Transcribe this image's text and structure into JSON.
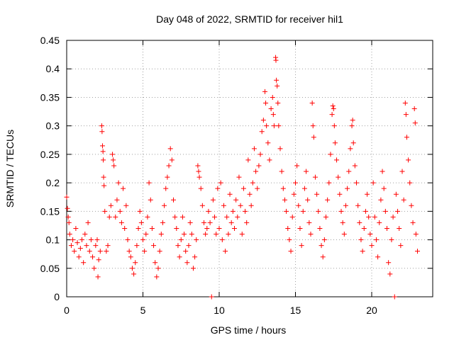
{
  "chart_data": {
    "type": "scatter",
    "title": "Day 048 of 2022, SRMTID for receiver hil1",
    "xlabel": "GPS time / hours",
    "ylabel": "SRMTID / TECUs",
    "xlim": [
      0,
      24
    ],
    "ylim": [
      0,
      0.45
    ],
    "x_ticks": [
      0,
      5,
      10,
      15,
      20
    ],
    "x_tick_labels": [
      "0",
      "5",
      "10",
      "15",
      "20"
    ],
    "y_ticks": [
      0,
      0.05,
      0.1,
      0.15,
      0.2,
      0.25,
      0.3,
      0.35,
      0.4,
      0.45
    ],
    "y_tick_labels": [
      "0",
      "0.05",
      "0.1",
      "0.15",
      "0.2",
      "0.25",
      "0.3",
      "0.35",
      "0.4",
      "0.45"
    ],
    "grid": true,
    "marker": "+",
    "color": "#ff0000",
    "series": [
      {
        "name": "SRMTID",
        "points": [
          [
            0.0,
            0.175
          ],
          [
            0.05,
            0.155
          ],
          [
            0.1,
            0.14
          ],
          [
            0.15,
            0.13
          ],
          [
            0.2,
            0.11
          ],
          [
            0.3,
            0.09
          ],
          [
            0.4,
            0.1
          ],
          [
            0.5,
            0.08
          ],
          [
            0.6,
            0.12
          ],
          [
            0.7,
            0.095
          ],
          [
            0.8,
            0.07
          ],
          [
            0.9,
            0.085
          ],
          [
            1.0,
            0.1
          ],
          [
            1.1,
            0.06
          ],
          [
            1.2,
            0.11
          ],
          [
            1.3,
            0.09
          ],
          [
            1.4,
            0.13
          ],
          [
            1.5,
            0.08
          ],
          [
            1.6,
            0.1
          ],
          [
            1.7,
            0.07
          ],
          [
            1.8,
            0.05
          ],
          [
            1.9,
            0.09
          ],
          [
            2.0,
            0.1
          ],
          [
            2.05,
            0.035
          ],
          [
            2.1,
            0.065
          ],
          [
            2.2,
            0.08
          ],
          [
            2.3,
            0.3
          ],
          [
            2.32,
            0.29
          ],
          [
            2.35,
            0.265
          ],
          [
            2.38,
            0.255
          ],
          [
            2.4,
            0.24
          ],
          [
            2.42,
            0.21
          ],
          [
            2.45,
            0.195
          ],
          [
            2.5,
            0.15
          ],
          [
            2.6,
            0.08
          ],
          [
            2.7,
            0.09
          ],
          [
            2.8,
            0.14
          ],
          [
            2.9,
            0.16
          ],
          [
            3.0,
            0.25
          ],
          [
            3.05,
            0.24
          ],
          [
            3.1,
            0.23
          ],
          [
            3.2,
            0.14
          ],
          [
            3.3,
            0.17
          ],
          [
            3.4,
            0.2
          ],
          [
            3.5,
            0.15
          ],
          [
            3.6,
            0.13
          ],
          [
            3.7,
            0.19
          ],
          [
            3.8,
            0.12
          ],
          [
            3.9,
            0.16
          ],
          [
            4.0,
            0.1
          ],
          [
            4.1,
            0.08
          ],
          [
            4.2,
            0.07
          ],
          [
            4.3,
            0.05
          ],
          [
            4.4,
            0.04
          ],
          [
            4.5,
            0.06
          ],
          [
            4.6,
            0.09
          ],
          [
            4.7,
            0.12
          ],
          [
            4.8,
            0.15
          ],
          [
            4.9,
            0.13
          ],
          [
            5.0,
            0.1
          ],
          [
            5.1,
            0.08
          ],
          [
            5.2,
            0.11
          ],
          [
            5.3,
            0.14
          ],
          [
            5.4,
            0.2
          ],
          [
            5.5,
            0.17
          ],
          [
            5.6,
            0.12
          ],
          [
            5.7,
            0.09
          ],
          [
            5.8,
            0.06
          ],
          [
            5.9,
            0.035
          ],
          [
            6.0,
            0.05
          ],
          [
            6.1,
            0.08
          ],
          [
            6.2,
            0.11
          ],
          [
            6.3,
            0.13
          ],
          [
            6.4,
            0.16
          ],
          [
            6.5,
            0.19
          ],
          [
            6.6,
            0.21
          ],
          [
            6.7,
            0.23
          ],
          [
            6.8,
            0.26
          ],
          [
            6.9,
            0.24
          ],
          [
            7.0,
            0.17
          ],
          [
            7.1,
            0.14
          ],
          [
            7.2,
            0.12
          ],
          [
            7.3,
            0.09
          ],
          [
            7.4,
            0.07
          ],
          [
            7.5,
            0.1
          ],
          [
            7.6,
            0.14
          ],
          [
            7.7,
            0.11
          ],
          [
            7.8,
            0.08
          ],
          [
            7.9,
            0.06
          ],
          [
            8.0,
            0.09
          ],
          [
            8.1,
            0.13
          ],
          [
            8.2,
            0.11
          ],
          [
            8.3,
            0.05
          ],
          [
            8.4,
            0.07
          ],
          [
            8.5,
            0.1
          ],
          [
            8.6,
            0.23
          ],
          [
            8.65,
            0.22
          ],
          [
            8.7,
            0.21
          ],
          [
            8.8,
            0.19
          ],
          [
            8.9,
            0.16
          ],
          [
            9.0,
            0.13
          ],
          [
            9.1,
            0.11
          ],
          [
            9.2,
            0.12
          ],
          [
            9.3,
            0.15
          ],
          [
            9.4,
            0.13
          ],
          [
            9.5,
            0.0
          ],
          [
            9.6,
            0.17
          ],
          [
            9.7,
            0.14
          ],
          [
            9.8,
            0.11
          ],
          [
            9.9,
            0.19
          ],
          [
            10.0,
            0.12
          ],
          [
            10.1,
            0.2
          ],
          [
            10.2,
            0.1
          ],
          [
            10.3,
            0.16
          ],
          [
            10.4,
            0.08
          ],
          [
            10.5,
            0.14
          ],
          [
            10.6,
            0.11
          ],
          [
            10.7,
            0.18
          ],
          [
            10.8,
            0.13
          ],
          [
            10.9,
            0.15
          ],
          [
            11.0,
            0.12
          ],
          [
            11.1,
            0.17
          ],
          [
            11.2,
            0.14
          ],
          [
            11.3,
            0.21
          ],
          [
            11.4,
            0.16
          ],
          [
            11.5,
            0.11
          ],
          [
            11.6,
            0.19
          ],
          [
            11.7,
            0.15
          ],
          [
            11.8,
            0.13
          ],
          [
            11.9,
            0.24
          ],
          [
            12.0,
            0.18
          ],
          [
            12.1,
            0.16
          ],
          [
            12.2,
            0.2
          ],
          [
            12.3,
            0.26
          ],
          [
            12.4,
            0.22
          ],
          [
            12.5,
            0.19
          ],
          [
            12.6,
            0.23
          ],
          [
            12.7,
            0.25
          ],
          [
            12.8,
            0.29
          ],
          [
            12.9,
            0.31
          ],
          [
            13.0,
            0.36
          ],
          [
            13.05,
            0.34
          ],
          [
            13.1,
            0.3
          ],
          [
            13.2,
            0.27
          ],
          [
            13.3,
            0.24
          ],
          [
            13.4,
            0.33
          ],
          [
            13.5,
            0.35
          ],
          [
            13.55,
            0.32
          ],
          [
            13.6,
            0.3
          ],
          [
            13.7,
            0.42
          ],
          [
            13.72,
            0.415
          ],
          [
            13.75,
            0.38
          ],
          [
            13.8,
            0.37
          ],
          [
            13.85,
            0.34
          ],
          [
            13.9,
            0.3
          ],
          [
            14.0,
            0.26
          ],
          [
            14.1,
            0.22
          ],
          [
            14.2,
            0.19
          ],
          [
            14.3,
            0.17
          ],
          [
            14.4,
            0.15
          ],
          [
            14.5,
            0.12
          ],
          [
            14.6,
            0.1
          ],
          [
            14.7,
            0.08
          ],
          [
            14.8,
            0.14
          ],
          [
            14.9,
            0.18
          ],
          [
            15.0,
            0.2
          ],
          [
            15.1,
            0.23
          ],
          [
            15.2,
            0.16
          ],
          [
            15.3,
            0.12
          ],
          [
            15.4,
            0.09
          ],
          [
            15.5,
            0.15
          ],
          [
            15.6,
            0.19
          ],
          [
            15.7,
            0.22
          ],
          [
            15.8,
            0.17
          ],
          [
            15.9,
            0.13
          ],
          [
            16.0,
            0.11
          ],
          [
            16.1,
            0.34
          ],
          [
            16.15,
            0.3
          ],
          [
            16.2,
            0.28
          ],
          [
            16.3,
            0.21
          ],
          [
            16.4,
            0.18
          ],
          [
            16.5,
            0.15
          ],
          [
            16.6,
            0.12
          ],
          [
            16.7,
            0.09
          ],
          [
            16.8,
            0.07
          ],
          [
            16.9,
            0.1
          ],
          [
            17.0,
            0.14
          ],
          [
            17.1,
            0.17
          ],
          [
            17.2,
            0.2
          ],
          [
            17.3,
            0.25
          ],
          [
            17.4,
            0.32
          ],
          [
            17.45,
            0.335
          ],
          [
            17.5,
            0.33
          ],
          [
            17.55,
            0.3
          ],
          [
            17.6,
            0.27
          ],
          [
            17.7,
            0.24
          ],
          [
            17.8,
            0.21
          ],
          [
            17.9,
            0.18
          ],
          [
            18.0,
            0.15
          ],
          [
            18.1,
            0.13
          ],
          [
            18.2,
            0.11
          ],
          [
            18.3,
            0.16
          ],
          [
            18.4,
            0.19
          ],
          [
            18.5,
            0.22
          ],
          [
            18.6,
            0.26
          ],
          [
            18.7,
            0.3
          ],
          [
            18.75,
            0.31
          ],
          [
            18.8,
            0.27
          ],
          [
            18.9,
            0.23
          ],
          [
            19.0,
            0.2
          ],
          [
            19.1,
            0.16
          ],
          [
            19.2,
            0.13
          ],
          [
            19.3,
            0.1
          ],
          [
            19.4,
            0.08
          ],
          [
            19.5,
            0.12
          ],
          [
            19.6,
            0.15
          ],
          [
            19.7,
            0.18
          ],
          [
            19.8,
            0.14
          ],
          [
            19.9,
            0.11
          ],
          [
            20.0,
            0.09
          ],
          [
            20.1,
            0.2
          ],
          [
            20.2,
            0.14
          ],
          [
            20.3,
            0.1
          ],
          [
            20.4,
            0.07
          ],
          [
            20.5,
            0.13
          ],
          [
            20.6,
            0.17
          ],
          [
            20.7,
            0.22
          ],
          [
            20.8,
            0.19
          ],
          [
            20.9,
            0.15
          ],
          [
            21.0,
            0.12
          ],
          [
            21.1,
            0.06
          ],
          [
            21.2,
            0.04
          ],
          [
            21.3,
            0.1
          ],
          [
            21.4,
            0.14
          ],
          [
            21.5,
            0.0
          ],
          [
            21.6,
            0.18
          ],
          [
            21.7,
            0.15
          ],
          [
            21.8,
            0.12
          ],
          [
            21.9,
            0.09
          ],
          [
            22.0,
            0.22
          ],
          [
            22.1,
            0.17
          ],
          [
            22.2,
            0.34
          ],
          [
            22.25,
            0.32
          ],
          [
            22.3,
            0.28
          ],
          [
            22.4,
            0.24
          ],
          [
            22.5,
            0.2
          ],
          [
            22.6,
            0.16
          ],
          [
            22.7,
            0.13
          ],
          [
            22.8,
            0.33
          ],
          [
            22.85,
            0.305
          ],
          [
            22.9,
            0.11
          ],
          [
            23.0,
            0.08
          ]
        ]
      }
    ]
  }
}
